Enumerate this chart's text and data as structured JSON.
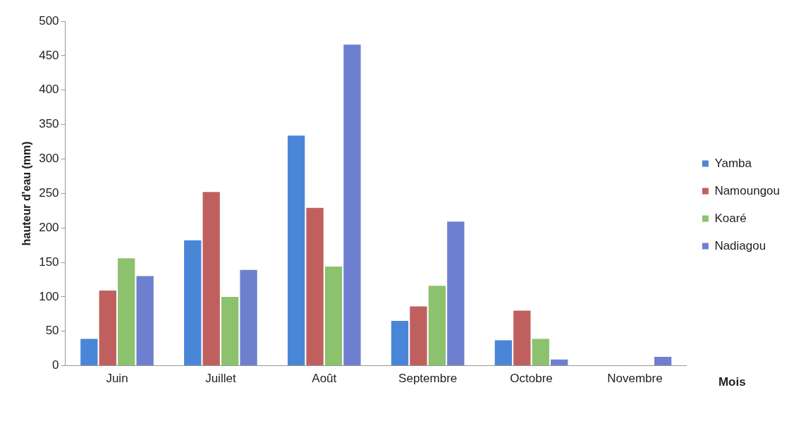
{
  "chart_data": {
    "type": "bar",
    "xlabel": "Mois",
    "ylabel": "hauteur d'eau (mm)",
    "categories": [
      "Juin",
      "Juillet",
      "Août",
      "Septembre",
      "Octobre",
      "Novembre"
    ],
    "series": [
      {
        "name": "Yamba",
        "color": "#4a86d8",
        "values": [
          39,
          182,
          334,
          65,
          37,
          0
        ]
      },
      {
        "name": "Namoungou",
        "color": "#c0605e",
        "values": [
          109,
          252,
          229,
          86,
          80,
          0
        ]
      },
      {
        "name": "Koaré",
        "color": "#8cc26e",
        "values": [
          156,
          100,
          144,
          116,
          39,
          0
        ]
      },
      {
        "name": "Nadiagou",
        "color": "#6f7fcf",
        "values": [
          130,
          139,
          466,
          209,
          9,
          13
        ]
      }
    ],
    "ylim": [
      0,
      500
    ],
    "yticks": [
      0,
      50,
      100,
      150,
      200,
      250,
      300,
      350,
      400,
      450,
      500
    ],
    "grid": false,
    "legend": "right"
  }
}
